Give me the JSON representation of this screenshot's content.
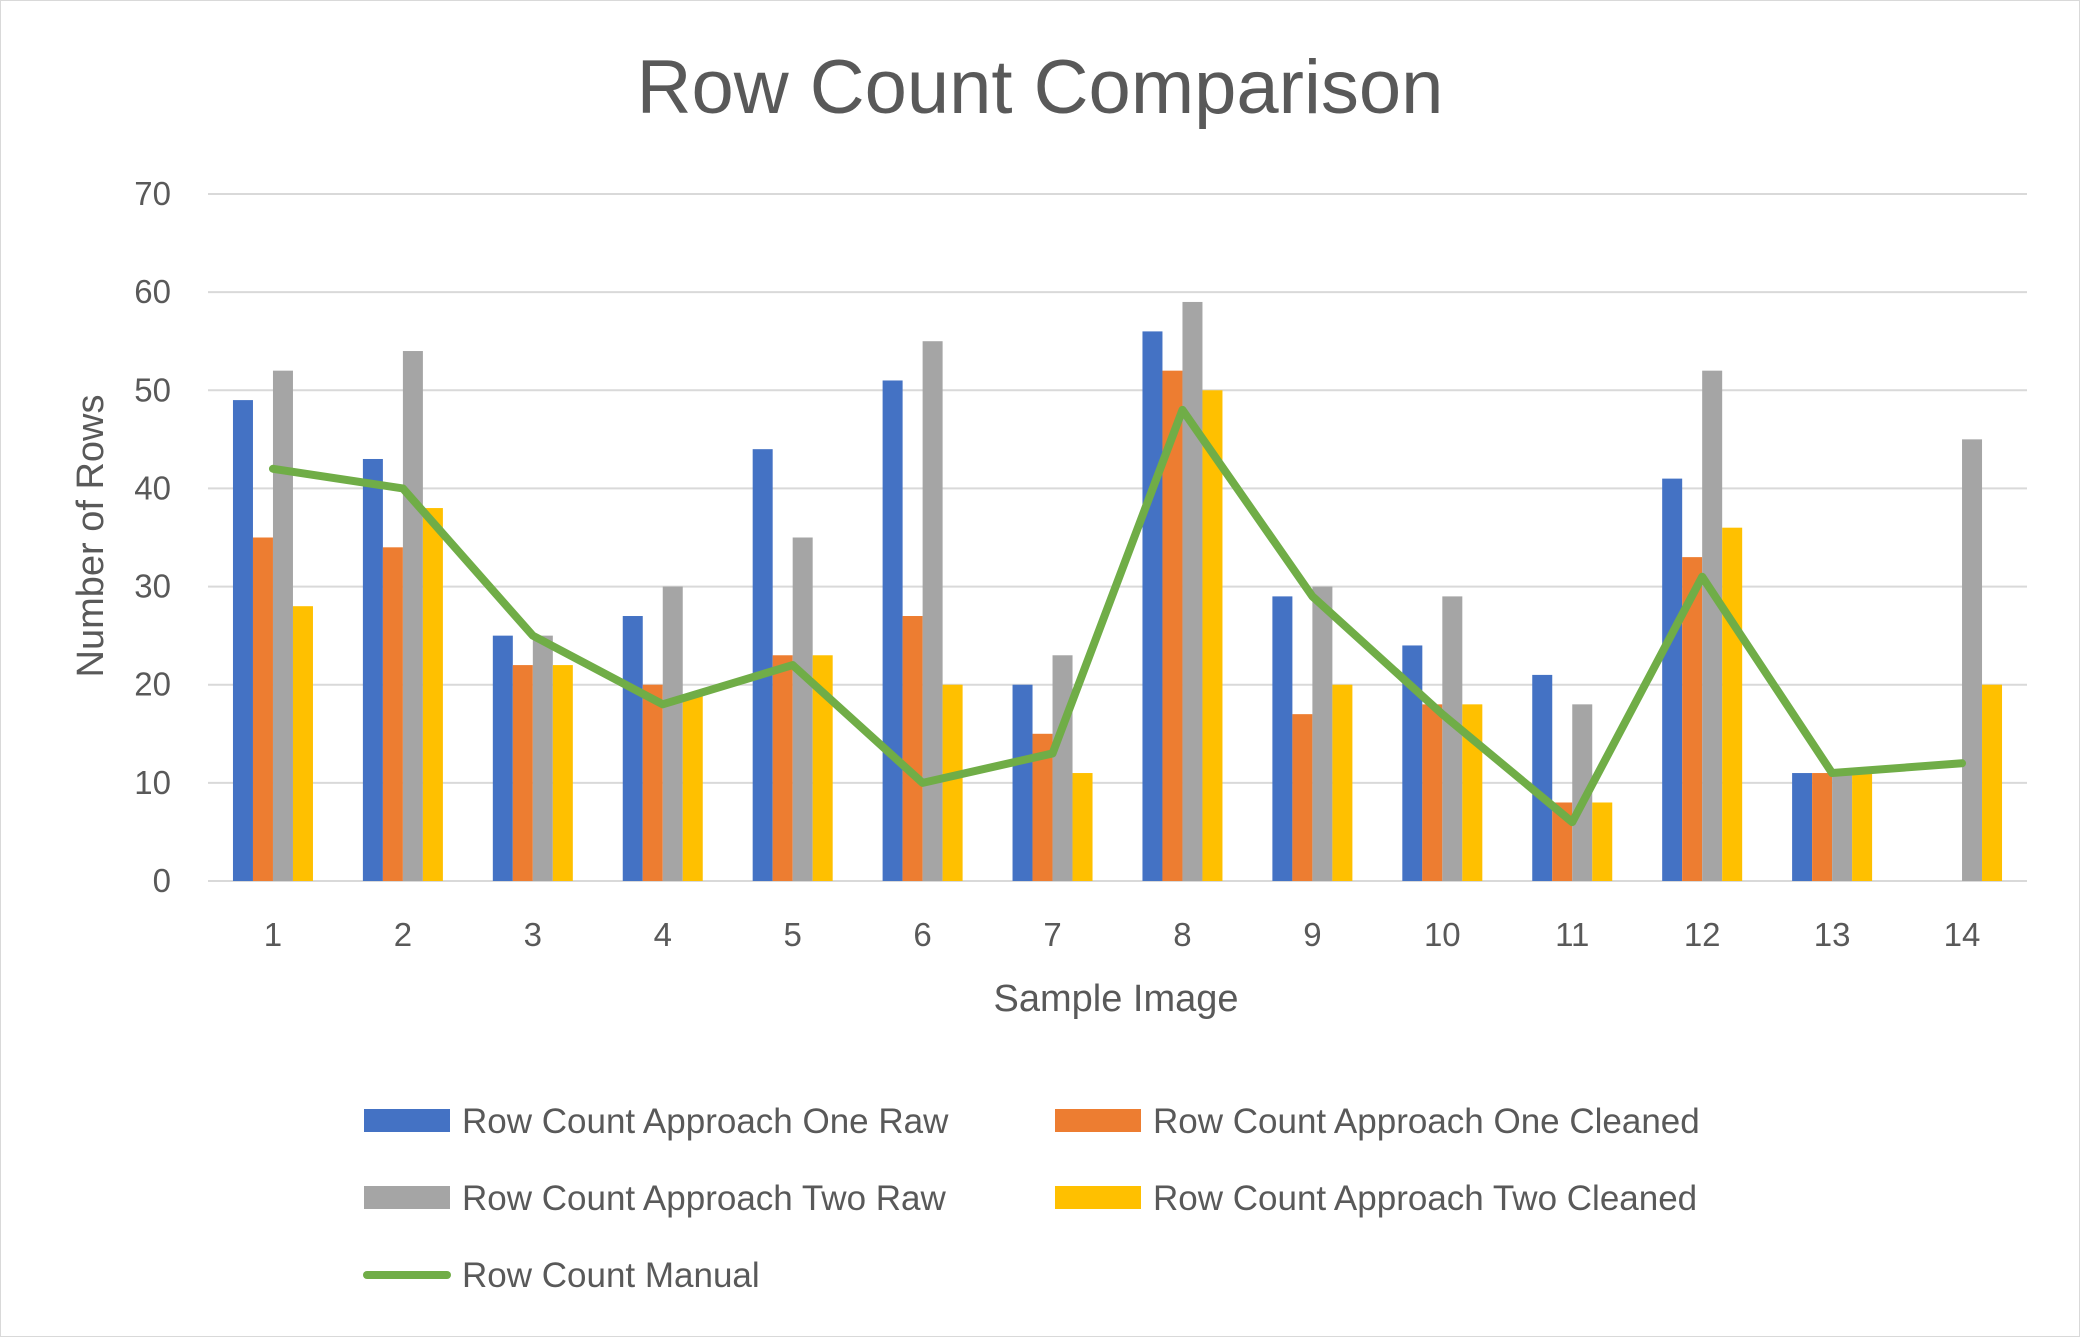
{
  "chart_data": {
    "type": "bar",
    "title": "Row Count Comparison",
    "xlabel": "Sample Image",
    "ylabel": "Number of Rows",
    "ylim": [
      0,
      70
    ],
    "yticks": [
      0,
      10,
      20,
      30,
      40,
      50,
      60,
      70
    ],
    "grid": true,
    "legend_position": "bottom",
    "categories": [
      "1",
      "2",
      "3",
      "4",
      "5",
      "6",
      "7",
      "8",
      "9",
      "10",
      "11",
      "12",
      "13",
      "14"
    ],
    "series": [
      {
        "name": "Row Count Approach One Raw",
        "kind": "bar",
        "color": "#4472C4",
        "values": [
          49,
          43,
          25,
          27,
          44,
          51,
          20,
          56,
          29,
          24,
          21,
          41,
          11,
          0
        ]
      },
      {
        "name": "Row Count Approach One Cleaned",
        "kind": "bar",
        "color": "#ED7D31",
        "values": [
          35,
          34,
          22,
          20,
          23,
          27,
          15,
          52,
          17,
          18,
          8,
          33,
          11,
          0
        ]
      },
      {
        "name": "Row Count Approach Two Raw",
        "kind": "bar",
        "color": "#A5A5A5",
        "values": [
          52,
          54,
          25,
          30,
          35,
          55,
          23,
          59,
          30,
          29,
          18,
          52,
          11,
          45
        ]
      },
      {
        "name": "Row Count Approach Two Cleaned",
        "kind": "bar",
        "color": "#FFC000",
        "values": [
          28,
          38,
          22,
          19,
          23,
          20,
          11,
          50,
          20,
          18,
          8,
          36,
          11,
          20
        ]
      },
      {
        "name": "Row Count Manual",
        "kind": "line",
        "color": "#70AD47",
        "values": [
          42,
          40,
          25,
          18,
          22,
          10,
          13,
          48,
          29,
          17,
          6,
          31,
          11,
          12
        ]
      }
    ]
  }
}
